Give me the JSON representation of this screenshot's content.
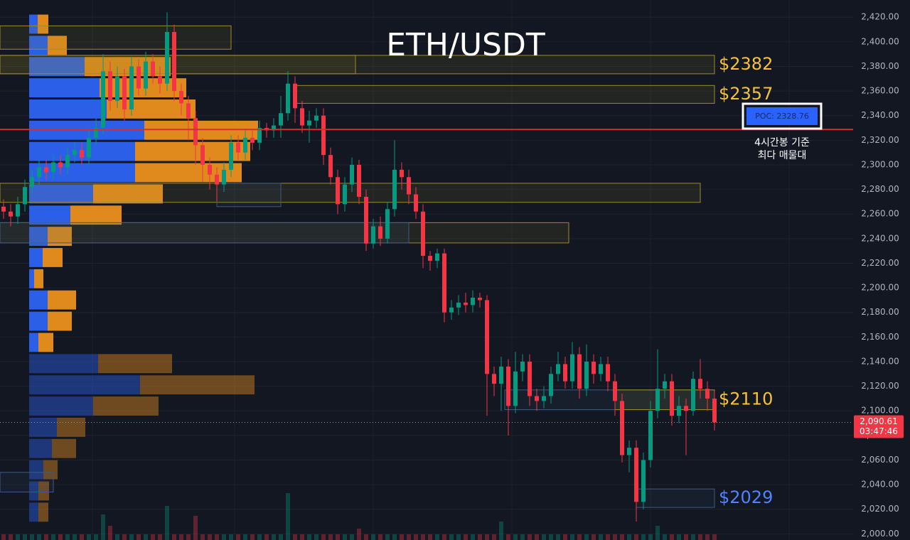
{
  "chart_data": {
    "type": "candlestick",
    "title": "ETH/USDT",
    "up_color": "#089981",
    "down_color": "#f23645",
    "open": [
      2266,
      2262,
      2258,
      2268,
      2282,
      2290,
      2298,
      2294,
      2302,
      2298,
      2308,
      2312,
      2306,
      2322,
      2330,
      2376,
      2352,
      2372,
      2345,
      2380,
      2362,
      2384,
      2372,
      2366,
      2408,
      2360,
      2350,
      2338,
      2316,
      2300,
      2292,
      2284,
      2296,
      2318,
      2310,
      2322,
      2318,
      2330,
      2328,
      2332,
      2342,
      2366,
      2346,
      2332,
      2336,
      2340,
      2308,
      2290,
      2268,
      2284,
      2300,
      2274,
      2236,
      2250,
      2240,
      2264,
      2296,
      2290,
      2276,
      2262,
      2226,
      2222,
      2228,
      2180,
      2184,
      2188,
      2186,
      2192,
      2190,
      2130,
      2122,
      2136,
      2104,
      2132,
      2140,
      2112,
      2108,
      2112,
      2130,
      2138,
      2124,
      2146,
      2118,
      2140,
      2130,
      2138,
      2124,
      2108,
      2064,
      2070,
      2026,
      2060,
      2100,
      2118,
      2124,
      2096,
      2104,
      2100,
      2126,
      2118,
      2110
    ],
    "high": [
      2272,
      2268,
      2274,
      2288,
      2296,
      2304,
      2304,
      2308,
      2308,
      2314,
      2318,
      2318,
      2328,
      2338,
      2390,
      2384,
      2380,
      2378,
      2388,
      2386,
      2392,
      2390,
      2380,
      2424,
      2414,
      2366,
      2356,
      2344,
      2322,
      2306,
      2298,
      2302,
      2324,
      2324,
      2328,
      2328,
      2336,
      2334,
      2338,
      2356,
      2376,
      2372,
      2352,
      2344,
      2346,
      2346,
      2314,
      2296,
      2290,
      2306,
      2304,
      2280,
      2256,
      2258,
      2270,
      2320,
      2302,
      2296,
      2282,
      2268,
      2230,
      2232,
      2232,
      2190,
      2194,
      2196,
      2198,
      2196,
      2194,
      2136,
      2144,
      2142,
      2148,
      2146,
      2146,
      2118,
      2120,
      2136,
      2148,
      2144,
      2156,
      2152,
      2154,
      2146,
      2144,
      2144,
      2130,
      2114,
      2076,
      2076,
      2066,
      2108,
      2150,
      2130,
      2130,
      2112,
      2110,
      2132,
      2142,
      2124,
      2116
    ],
    "low": [
      2256,
      2250,
      2252,
      2262,
      2276,
      2284,
      2288,
      2288,
      2292,
      2292,
      2302,
      2300,
      2300,
      2316,
      2324,
      2344,
      2346,
      2336,
      2340,
      2356,
      2356,
      2366,
      2358,
      2360,
      2352,
      2340,
      2320,
      2300,
      2286,
      2280,
      2270,
      2278,
      2290,
      2304,
      2304,
      2312,
      2312,
      2322,
      2322,
      2322,
      2336,
      2334,
      2326,
      2318,
      2330,
      2300,
      2284,
      2260,
      2262,
      2278,
      2268,
      2230,
      2232,
      2234,
      2236,
      2258,
      2280,
      2268,
      2256,
      2216,
      2214,
      2216,
      2172,
      2174,
      2178,
      2180,
      2180,
      2184,
      2096,
      2112,
      2100,
      2080,
      2098,
      2124,
      2104,
      2100,
      2102,
      2106,
      2124,
      2118,
      2118,
      2110,
      2112,
      2122,
      2124,
      2116,
      2096,
      2058,
      2050,
      2010,
      2020,
      2054,
      2094,
      2110,
      2088,
      2090,
      2064,
      2096,
      2110,
      2100,
      2084
    ],
    "close": [
      2262,
      2258,
      2268,
      2282,
      2290,
      2298,
      2294,
      2302,
      2298,
      2308,
      2312,
      2306,
      2322,
      2330,
      2376,
      2352,
      2372,
      2345,
      2380,
      2362,
      2384,
      2372,
      2366,
      2408,
      2360,
      2350,
      2338,
      2316,
      2300,
      2292,
      2284,
      2296,
      2318,
      2310,
      2322,
      2318,
      2330,
      2328,
      2332,
      2342,
      2366,
      2346,
      2332,
      2336,
      2340,
      2308,
      2290,
      2268,
      2284,
      2300,
      2274,
      2236,
      2250,
      2240,
      2264,
      2296,
      2290,
      2276,
      2262,
      2226,
      2222,
      2228,
      2180,
      2184,
      2188,
      2186,
      2192,
      2190,
      2130,
      2122,
      2136,
      2104,
      2132,
      2140,
      2112,
      2108,
      2112,
      2130,
      2138,
      2124,
      2146,
      2118,
      2140,
      2130,
      2138,
      2124,
      2108,
      2064,
      2070,
      2026,
      2060,
      2100,
      2118,
      2124,
      2096,
      2104,
      2100,
      2126,
      2118,
      2110,
      2090.61
    ],
    "volume": [
      8,
      8,
      8,
      8,
      8,
      8,
      8,
      8,
      8,
      8,
      8,
      8,
      8,
      8,
      36,
      20,
      8,
      8,
      8,
      8,
      8,
      8,
      8,
      48,
      8,
      8,
      8,
      34,
      8,
      8,
      8,
      8,
      8,
      8,
      8,
      8,
      8,
      8,
      8,
      8,
      66,
      8,
      8,
      8,
      8,
      8,
      8,
      8,
      8,
      8,
      16,
      8,
      8,
      8,
      8,
      8,
      8,
      8,
      8,
      8,
      8,
      8,
      8,
      8,
      8,
      8,
      8,
      8,
      8,
      8,
      26,
      8,
      8,
      8,
      8,
      8,
      8,
      8,
      8,
      8,
      8,
      8,
      8,
      8,
      8,
      8,
      8,
      8,
      8,
      8,
      8,
      8,
      20,
      8,
      8,
      8,
      8,
      8,
      8,
      8,
      8
    ],
    "ylim": [
      1995,
      2434
    ],
    "yticks": [
      {
        "value": 2000,
        "label": "2,000.00"
      },
      {
        "value": 2020,
        "label": "2,020.00"
      },
      {
        "value": 2040,
        "label": "2,040.00"
      },
      {
        "value": 2060,
        "label": "2,060.00"
      },
      {
        "value": 2080,
        "label": "2,080.00"
      },
      {
        "value": 2100,
        "label": "2,100.00"
      },
      {
        "value": 2120,
        "label": "2,120.00"
      },
      {
        "value": 2140,
        "label": "2,140.00"
      },
      {
        "value": 2160,
        "label": "2,160.00"
      },
      {
        "value": 2180,
        "label": "2,180.00"
      },
      {
        "value": 2200,
        "label": "2,200.00"
      },
      {
        "value": 2220,
        "label": "2,220.00"
      },
      {
        "value": 2240,
        "label": "2,240.00"
      },
      {
        "value": 2260,
        "label": "2,260.00"
      },
      {
        "value": 2280,
        "label": "2,280.00"
      },
      {
        "value": 2300,
        "label": "2,300.00"
      },
      {
        "value": 2320,
        "label": "2,320.00"
      },
      {
        "value": 2340,
        "label": "2,340.00"
      },
      {
        "value": 2360,
        "label": "2,360.00"
      },
      {
        "value": 2380,
        "label": "2,380.00"
      },
      {
        "value": 2400,
        "label": "2,400.00"
      },
      {
        "value": 2420,
        "label": "2,420.00"
      }
    ],
    "grid": true,
    "last_price": {
      "value": 2090.61,
      "label": "2,090.61"
    },
    "countdown": "03:47:46",
    "poc": {
      "value": 2328.76,
      "label": "POC: 2328.76",
      "color": "#d32f2f",
      "caption": [
        "4시간봉 기준",
        "최다 매물대"
      ]
    },
    "zones": [
      {
        "low": 2394,
        "high": 2413,
        "start": -0.5,
        "end": 32,
        "color": "#a08a2a"
      },
      {
        "low": 2374,
        "high": 2389,
        "start": -0.5,
        "end": 49.5,
        "color": "#a08a2a"
      },
      {
        "low": 2374,
        "high": 2389,
        "start": -0.5,
        "end": 100,
        "color": "#a08a2a",
        "label": "$2382",
        "label_color": "#f5c23a"
      },
      {
        "low": 2350,
        "high": 2364.5,
        "start": 41,
        "end": 100,
        "color": "#a08a2a",
        "label": "$2357",
        "label_color": "#f5c23a"
      },
      {
        "low": 2269.5,
        "high": 2285,
        "start": -0.5,
        "end": 98,
        "color": "#a08a2a"
      },
      {
        "low": 2266,
        "high": 2285,
        "start": 30,
        "end": 39,
        "color": "#3d5a80"
      },
      {
        "low": 2236.5,
        "high": 2253,
        "start": -0.5,
        "end": 79.5,
        "color": "#a08a2a"
      },
      {
        "low": 2236.5,
        "high": 2253,
        "start": -0.5,
        "end": 57,
        "color": "#3d5a80"
      },
      {
        "low": 2101,
        "high": 2117,
        "start": 70.5,
        "end": 100,
        "color": "#3d5a80"
      },
      {
        "low": 2101,
        "high": 2117,
        "start": 86,
        "end": 100,
        "color": "#a08a2a",
        "label": "$2110",
        "label_color": "#f5c23a"
      },
      {
        "low": 2021.5,
        "high": 2036.5,
        "start": 89,
        "end": 100,
        "color": "#3d5a80",
        "label": "$2029",
        "label_color": "#4f83ff"
      },
      {
        "low": 2034,
        "high": 2050,
        "start": -0.5,
        "end": 7,
        "color": "#3d5a80"
      }
    ],
    "volume_profile": {
      "bins": [
        2009,
        2026.25,
        2043.5,
        2060.75,
        2078,
        2095.25,
        2112.5,
        2129.75,
        2147,
        2164.25,
        2181.5,
        2198.75,
        2216,
        2233.25,
        2250.5,
        2267.75,
        2285,
        2302.25,
        2319.5,
        2336.75,
        2354,
        2371.25,
        2388.5,
        2405.75,
        2423
      ],
      "buy": [
        13,
        13,
        20,
        32,
        39,
        90,
        156,
        97,
        13,
        26,
        26,
        7,
        19,
        26,
        58,
        90,
        149,
        149,
        162,
        109,
        99,
        78,
        26,
        12
      ],
      "sell": [
        14,
        15,
        20,
        34,
        40,
        92,
        161,
        104,
        21,
        34,
        40,
        13,
        28,
        34,
        72,
        98,
        150,
        162,
        160,
        125,
        122,
        121,
        27,
        15
      ],
      "faded": [
        true,
        true,
        true,
        true,
        true,
        true,
        true,
        true,
        false,
        false,
        false,
        false,
        false,
        false,
        false,
        false,
        false,
        false,
        false,
        false,
        false,
        false,
        false,
        false
      ],
      "buy_color": "#2c5fe8",
      "sell_color": "#e08a1e"
    }
  }
}
